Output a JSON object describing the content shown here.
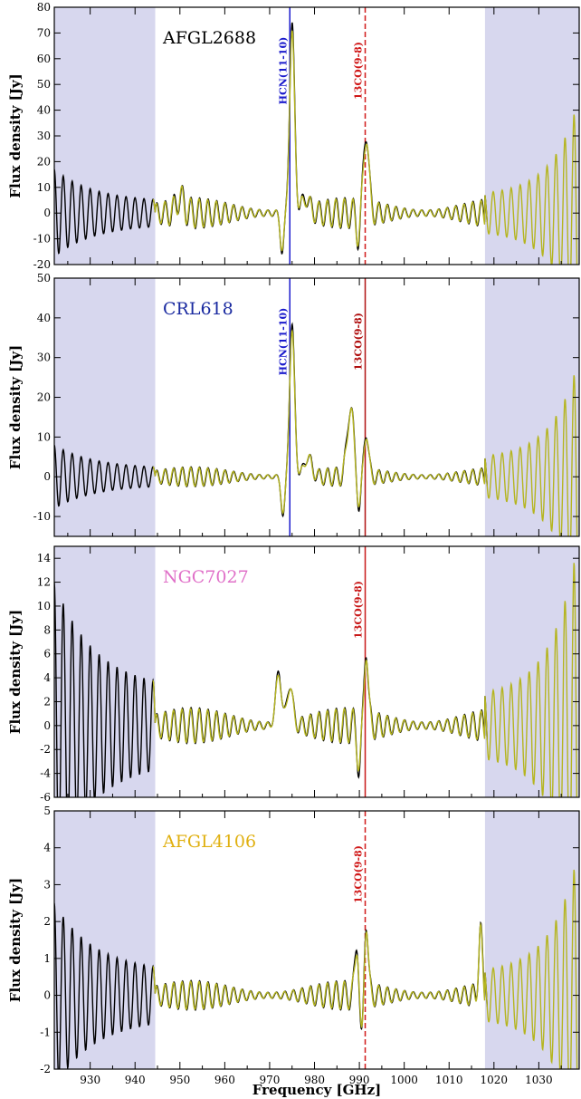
{
  "figure": {
    "xlabel": "Frequency [GHz]",
    "x_ticks": [
      930,
      940,
      950,
      960,
      970,
      980,
      990,
      1000,
      1010,
      1020,
      1030
    ],
    "xlim": [
      922,
      1039
    ],
    "shaded_ranges": [
      [
        922,
        944.5
      ],
      [
        1018,
        1039
      ]
    ],
    "shade_color": "#d7d7ee",
    "observed_color": "#000000",
    "model_color": "#b5b520"
  },
  "chart_data": [
    {
      "type": "line",
      "title": "AFGL2688",
      "title_color": "#000000",
      "ylabel": "Flux density [Jy]",
      "ylim": [
        -20,
        80
      ],
      "y_ticks": [
        -20,
        -10,
        0,
        10,
        20,
        30,
        40,
        50,
        60,
        70,
        80
      ],
      "markers": [
        {
          "label": "HCN(11-10)",
          "x": 974.5,
          "color": "#1a1acc",
          "style": "solid"
        },
        {
          "label": "13CO(9-8)",
          "x": 991.3,
          "color": "#d01818",
          "style": "dashed"
        }
      ],
      "features": {
        "left_osc_amp": 17,
        "mid_osc_amp": 6,
        "right_osc_amp": 45,
        "peaks": [
          {
            "x": 975,
            "y": 73,
            "w": 0.8
          },
          {
            "x": 991.5,
            "y": 33,
            "w": 0.8
          },
          {
            "x": 972.8,
            "y": -15,
            "w": 0.6
          },
          {
            "x": 989.8,
            "y": -9,
            "w": 0.6
          },
          {
            "x": 950,
            "y": 6,
            "w": 1.2
          },
          {
            "x": 978,
            "y": 6,
            "w": 1.2
          }
        ]
      }
    },
    {
      "type": "line",
      "title": "CRL618",
      "title_color": "#1a2aa0",
      "ylabel": "Flux density [Jy]",
      "ylim": [
        -15,
        50
      ],
      "y_ticks": [
        -10,
        0,
        10,
        20,
        30,
        40,
        50
      ],
      "markers": [
        {
          "label": "HCN(11-10)",
          "x": 974.5,
          "color": "#1a1acc",
          "style": "solid"
        },
        {
          "label": "13CO(9-8)",
          "x": 991.3,
          "color": "#b01010",
          "style": "solid"
        }
      ],
      "features": {
        "left_osc_amp": 8,
        "mid_osc_amp": 2.5,
        "right_osc_amp": 30,
        "peaks": [
          {
            "x": 975,
            "y": 38,
            "w": 0.8
          },
          {
            "x": 988,
            "y": 18,
            "w": 1.0
          },
          {
            "x": 991.5,
            "y": 12,
            "w": 0.7
          },
          {
            "x": 973,
            "y": -10,
            "w": 0.6
          },
          {
            "x": 978.5,
            "y": 5,
            "w": 1.2
          },
          {
            "x": 990,
            "y": -8,
            "w": 0.6
          }
        ]
      }
    },
    {
      "type": "line",
      "title": "NGC7027",
      "title_color": "#e070c8",
      "ylabel": "Flux density [Jy]",
      "ylim": [
        -6,
        15
      ],
      "y_ticks": [
        -6,
        -4,
        -2,
        0,
        2,
        4,
        6,
        8,
        10,
        12,
        14
      ],
      "markers": [
        {
          "label": "13CO(9-8)",
          "x": 991.3,
          "color": "#c81818",
          "style": "solid"
        }
      ],
      "features": {
        "left_osc_amp": 12,
        "mid_osc_amp": 1.5,
        "right_osc_amp": 16,
        "peaks": [
          {
            "x": 972,
            "y": 4.5,
            "w": 0.9
          },
          {
            "x": 974.5,
            "y": 3.5,
            "w": 0.9
          },
          {
            "x": 991.5,
            "y": 7,
            "w": 0.6
          },
          {
            "x": 990,
            "y": -3.5,
            "w": 0.6
          }
        ]
      }
    },
    {
      "type": "line",
      "title": "AFGL4106",
      "title_color": "#e0b010",
      "ylabel": "Flux density [Jy]",
      "ylim": [
        -2,
        5
      ],
      "y_ticks": [
        -2,
        -1,
        0,
        1,
        2,
        3,
        4,
        5
      ],
      "markers": [
        {
          "label": "13CO(9-8)",
          "x": 991.3,
          "color": "#d01818",
          "style": "dashed"
        }
      ],
      "features": {
        "left_osc_amp": 2.5,
        "mid_osc_amp": 0.4,
        "right_osc_amp": 4,
        "peaks": [
          {
            "x": 989.5,
            "y": 1.6,
            "w": 0.6
          },
          {
            "x": 991.5,
            "y": 2.2,
            "w": 0.6
          },
          {
            "x": 990.5,
            "y": -1.5,
            "w": 0.6
          },
          {
            "x": 1017,
            "y": 1.7,
            "w": 0.6
          }
        ]
      }
    }
  ]
}
